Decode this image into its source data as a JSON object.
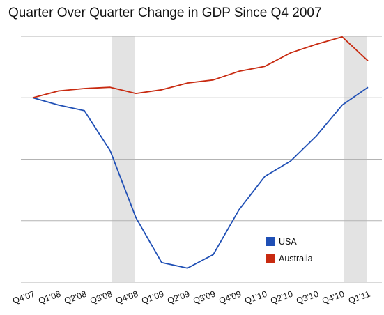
{
  "chart_data": {
    "type": "line",
    "title": "Quarter Over Quarter Change in GDP Since Q4 2007",
    "xlabel": "",
    "ylabel": "",
    "categories": [
      "Q4'07",
      "Q1'08",
      "Q2'08",
      "Q3'08",
      "Q4'08",
      "Q1'09",
      "Q2'09",
      "Q3'09",
      "Q4'09",
      "Q1'10",
      "Q2'10",
      "Q3'10",
      "Q4'10",
      "Q1'11"
    ],
    "ylim": [
      -3,
      1
    ],
    "grid": true,
    "legend_position": "bottom-right",
    "shaded_ranges": [
      {
        "from": "Q3'08",
        "to": "Q4'08",
        "color": "#e3e3e3"
      },
      {
        "from": "Q4'10",
        "to": "Q1'11",
        "color": "#e3e3e3"
      }
    ],
    "series": [
      {
        "name": "USA",
        "color": "#1f4fb5",
        "values": [
          0,
          -0.12,
          -0.21,
          -0.86,
          -1.95,
          -2.68,
          -2.77,
          -2.55,
          -1.82,
          -1.28,
          -1.03,
          -0.62,
          -0.12,
          0.17
        ]
      },
      {
        "name": "Australia",
        "color": "#c82a10",
        "values": [
          0,
          0.11,
          0.15,
          0.17,
          0.07,
          0.13,
          0.24,
          0.29,
          0.43,
          0.51,
          0.73,
          0.87,
          0.99,
          0.6
        ]
      }
    ]
  }
}
